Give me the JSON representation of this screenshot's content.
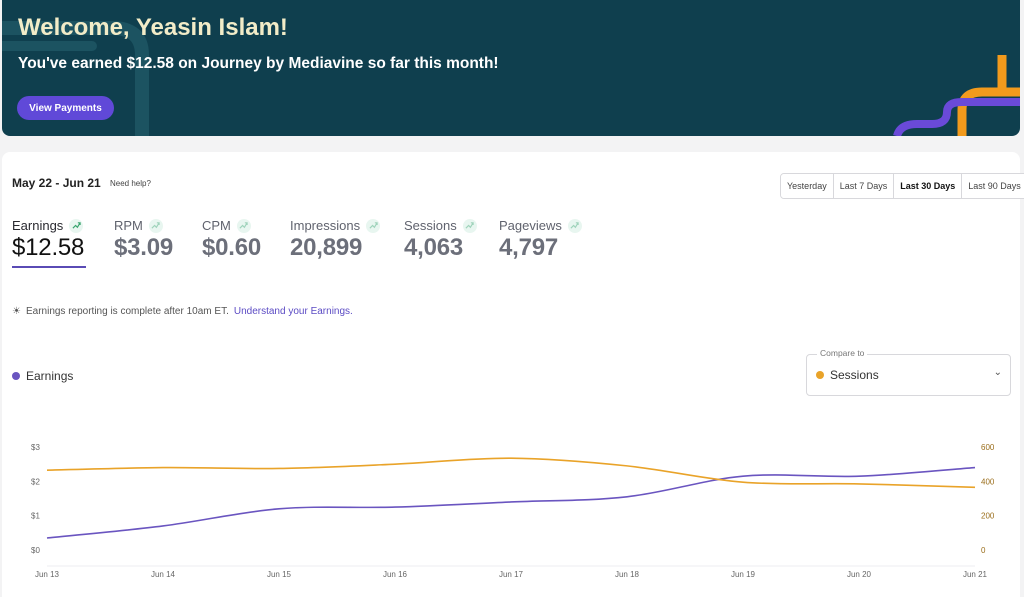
{
  "banner": {
    "title": "Welcome, Yeasin Islam!",
    "subtitle": "You've earned $12.58 on Journey by Mediavine so far this month!",
    "button_label": "View Payments"
  },
  "dashboard": {
    "date_range": "May 22 - Jun 21",
    "help_label": "Need help?",
    "range_tabs": [
      {
        "label": "Yesterday",
        "active": false
      },
      {
        "label": "Last 7 Days",
        "active": false
      },
      {
        "label": "Last 30 Days",
        "active": true
      },
      {
        "label": "Last 90 Days",
        "active": false
      }
    ],
    "metrics": [
      {
        "label": "Earnings",
        "value": "$12.58",
        "active": true
      },
      {
        "label": "RPM",
        "value": "$3.09",
        "active": false
      },
      {
        "label": "CPM",
        "value": "$0.60",
        "active": false
      },
      {
        "label": "Impressions",
        "value": "20,899",
        "active": false
      },
      {
        "label": "Sessions",
        "value": "4,063",
        "active": false
      },
      {
        "label": "Pageviews",
        "value": "4,797",
        "active": false
      }
    ],
    "note_text": "Earnings reporting is complete after 10am ET.",
    "note_link": "Understand your Earnings.",
    "legend_label": "Earnings",
    "compare_caption": "Compare to",
    "compare_value": "Sessions"
  },
  "colors": {
    "banner_bg": "#0f3f4e",
    "accent_purple": "#6049d8",
    "earnings_line": "#6a55c0",
    "sessions_line": "#e9a329"
  },
  "chart_data": {
    "type": "line",
    "x": [
      "Jun 13",
      "Jun 14",
      "Jun 15",
      "Jun 16",
      "Jun 17",
      "Jun 18",
      "Jun 19",
      "Jun 20",
      "Jun 21"
    ],
    "series": [
      {
        "name": "Earnings",
        "axis": "left",
        "values": [
          0.35,
          0.7,
          1.2,
          1.25,
          1.4,
          1.55,
          2.15,
          2.15,
          2.4
        ]
      },
      {
        "name": "Sessions",
        "axis": "right",
        "values": [
          465,
          480,
          475,
          500,
          535,
          490,
          395,
          385,
          365
        ]
      }
    ],
    "y_left": {
      "ticks": [
        "$0",
        "$1",
        "$2",
        "$3"
      ],
      "range": [
        0,
        3
      ]
    },
    "y_right": {
      "ticks": [
        "0",
        "200",
        "400",
        "600"
      ],
      "range": [
        0,
        600
      ]
    }
  }
}
